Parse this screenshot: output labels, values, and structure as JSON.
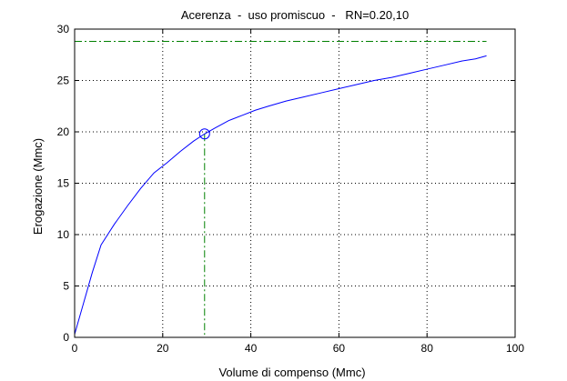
{
  "chart_data": {
    "type": "line",
    "title": "Acerenza  -  uso promiscuo  -   RN=0.20,10",
    "xlabel": "Volume di compenso (Mmc)",
    "ylabel": "Erogazione (Mmc)",
    "xlim": [
      0,
      100
    ],
    "ylim": [
      0,
      30
    ],
    "xticks": [
      0,
      20,
      40,
      60,
      80,
      100
    ],
    "yticks": [
      0,
      5,
      10,
      15,
      20,
      25,
      30
    ],
    "grid": true,
    "colors": {
      "curve": "#0000ff",
      "reference": "#008000",
      "marker": "#0000ff"
    },
    "series": [
      {
        "x": [
          0,
          2,
          4,
          6,
          7.5,
          9,
          12,
          15,
          18,
          21,
          24,
          27,
          29.5,
          32,
          35,
          38,
          41,
          44,
          48,
          52,
          56,
          60,
          64,
          68,
          72,
          76,
          80,
          84,
          88,
          91,
          93.5
        ],
        "y": [
          0.3,
          3.3,
          6.3,
          9.0,
          10.0,
          11.0,
          12.8,
          14.5,
          16.0,
          17.0,
          18.1,
          19.1,
          19.8,
          20.4,
          21.1,
          21.6,
          22.1,
          22.5,
          23.0,
          23.4,
          23.8,
          24.2,
          24.6,
          25.0,
          25.3,
          25.7,
          26.1,
          26.5,
          26.9,
          27.1,
          27.4
        ]
      }
    ],
    "reference_lines": {
      "horizontal_y": 28.8,
      "vertical_x": 29.5
    },
    "marker": {
      "x": 29.5,
      "y": 19.8,
      "shape": "circle"
    }
  }
}
